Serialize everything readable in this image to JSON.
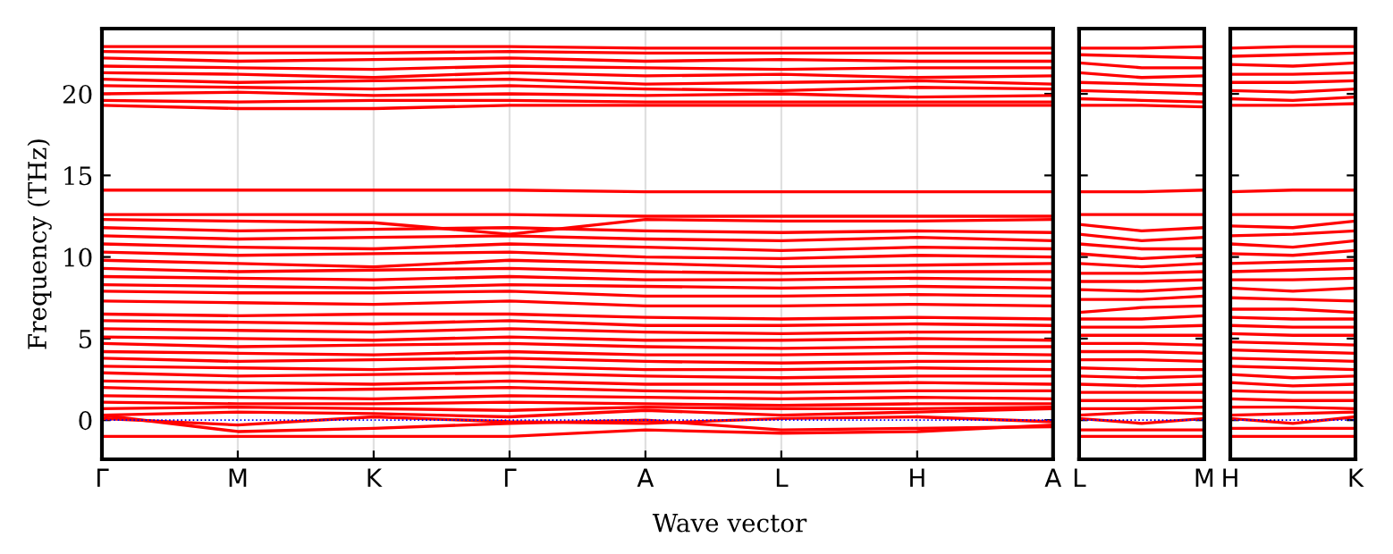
{
  "chart_data": [
    {
      "type": "line",
      "ylabel": "Frequency (THz)",
      "xlabel": "Wave vector",
      "color": "#ff0000",
      "line_style": "solid",
      "marker": "none",
      "grid": "x",
      "categories": [
        "Γ",
        "M",
        "K",
        "Γ",
        "A",
        "L",
        "H",
        "A"
      ],
      "ylim": [
        -2.4,
        24
      ],
      "yticks": [
        0,
        5,
        10,
        15,
        20
      ],
      "ref_lines": [
        {
          "axis": "y",
          "value": 0,
          "color": "#0000ff",
          "line_style": "dotted"
        }
      ],
      "series": [
        {
          "values": [
            22.9,
            22.9,
            22.9,
            22.9,
            22.8,
            22.8,
            22.8,
            22.8
          ]
        },
        {
          "values": [
            22.6,
            22.5,
            22.5,
            22.6,
            22.5,
            22.5,
            22.5,
            22.5
          ]
        },
        {
          "values": [
            22.2,
            22.0,
            22.1,
            22.2,
            22.0,
            22.1,
            22.0,
            22.0
          ]
        },
        {
          "values": [
            21.7,
            21.6,
            21.5,
            21.7,
            21.6,
            21.5,
            21.6,
            21.6
          ]
        },
        {
          "values": [
            21.3,
            21.2,
            21.0,
            21.3,
            21.1,
            21.2,
            21.0,
            21.1
          ]
        },
        {
          "values": [
            20.9,
            20.7,
            20.8,
            20.9,
            20.6,
            20.7,
            20.8,
            20.6
          ]
        },
        {
          "values": [
            20.5,
            20.4,
            20.3,
            20.5,
            20.3,
            20.2,
            20.4,
            20.3
          ]
        },
        {
          "values": [
            20.0,
            20.1,
            19.9,
            20.0,
            19.9,
            20.0,
            19.8,
            19.9
          ]
        },
        {
          "values": [
            19.6,
            19.5,
            19.6,
            19.6,
            19.5,
            19.5,
            19.5,
            19.5
          ]
        },
        {
          "values": [
            19.3,
            19.1,
            19.1,
            19.3,
            19.3,
            19.3,
            19.3,
            19.3
          ]
        },
        {
          "values": [
            14.1,
            14.1,
            14.1,
            14.1,
            14.0,
            14.0,
            14.0,
            14.0
          ]
        },
        {
          "values": [
            12.6,
            12.6,
            12.6,
            12.6,
            12.5,
            12.5,
            12.5,
            12.5
          ]
        },
        {
          "values": [
            12.3,
            12.2,
            12.1,
            11.4,
            12.3,
            12.2,
            12.2,
            12.3
          ]
        },
        {
          "values": [
            11.8,
            11.6,
            11.7,
            11.8,
            11.6,
            11.5,
            11.6,
            11.5
          ]
        },
        {
          "values": [
            11.3,
            11.1,
            11.2,
            11.3,
            11.1,
            11.0,
            11.2,
            11.0
          ]
        },
        {
          "values": [
            10.8,
            10.6,
            10.5,
            10.8,
            10.6,
            10.4,
            10.6,
            10.5
          ]
        },
        {
          "values": [
            10.3,
            10.1,
            10.2,
            10.3,
            10.0,
            9.9,
            10.1,
            10.0
          ]
        },
        {
          "values": [
            9.8,
            9.6,
            9.4,
            9.8,
            9.6,
            9.4,
            9.5,
            9.6
          ]
        },
        {
          "values": [
            9.3,
            9.1,
            9.2,
            9.3,
            9.1,
            9.0,
            9.1,
            9.1
          ]
        },
        {
          "values": [
            8.8,
            8.7,
            8.6,
            8.8,
            8.6,
            8.6,
            8.7,
            8.6
          ]
        },
        {
          "values": [
            8.3,
            8.2,
            8.1,
            8.3,
            8.2,
            8.1,
            8.2,
            8.1
          ]
        },
        {
          "values": [
            7.9,
            7.8,
            7.8,
            7.9,
            7.6,
            7.6,
            7.7,
            7.6
          ]
        },
        {
          "values": [
            7.3,
            7.2,
            7.1,
            7.3,
            7.0,
            7.0,
            7.1,
            7.0
          ]
        },
        {
          "values": [
            6.5,
            6.4,
            6.5,
            6.5,
            6.3,
            6.2,
            6.3,
            6.2
          ]
        },
        {
          "values": [
            6.1,
            6.0,
            5.9,
            6.1,
            5.8,
            5.8,
            5.9,
            5.8
          ]
        },
        {
          "values": [
            5.6,
            5.5,
            5.4,
            5.6,
            5.4,
            5.3,
            5.4,
            5.4
          ]
        },
        {
          "values": [
            5.1,
            5.0,
            4.9,
            5.1,
            4.9,
            4.9,
            5.0,
            4.9
          ]
        },
        {
          "values": [
            4.7,
            4.5,
            4.6,
            4.7,
            4.5,
            4.4,
            4.5,
            4.5
          ]
        },
        {
          "values": [
            4.2,
            4.1,
            4.0,
            4.2,
            4.0,
            4.0,
            4.1,
            4.0
          ]
        },
        {
          "values": [
            3.8,
            3.6,
            3.7,
            3.8,
            3.6,
            3.5,
            3.6,
            3.6
          ]
        },
        {
          "values": [
            3.3,
            3.2,
            3.1,
            3.3,
            3.1,
            3.1,
            3.2,
            3.1
          ]
        },
        {
          "values": [
            2.9,
            2.7,
            2.8,
            2.9,
            2.7,
            2.6,
            2.7,
            2.7
          ]
        },
        {
          "values": [
            2.4,
            2.3,
            2.2,
            2.4,
            2.2,
            2.2,
            2.3,
            2.2
          ]
        },
        {
          "values": [
            2.0,
            1.8,
            1.9,
            2.0,
            1.8,
            1.7,
            1.8,
            1.8
          ]
        },
        {
          "values": [
            1.5,
            1.4,
            1.3,
            1.5,
            1.4,
            1.3,
            1.4,
            1.3
          ]
        },
        {
          "values": [
            1.1,
            1.0,
            1.0,
            1.1,
            1.0,
            0.9,
            1.0,
            1.0
          ]
        },
        {
          "values": [
            0.7,
            0.8,
            0.7,
            0.6,
            0.8,
            0.7,
            0.7,
            0.8
          ]
        },
        {
          "values": [
            0.3,
            0.5,
            0.4,
            0.2,
            0.6,
            0.3,
            0.5,
            0.7
          ]
        },
        {
          "values": [
            0.1,
            -0.3,
            0.2,
            -0.1,
            -0.2,
            0.1,
            0.2,
            -0.1
          ]
        },
        {
          "values": [
            0.3,
            -0.7,
            -0.5,
            -0.2,
            0.0,
            -0.6,
            -0.5,
            -0.4
          ]
        },
        {
          "values": [
            -1.0,
            -1.0,
            -1.0,
            -1.0,
            -0.6,
            -0.8,
            -0.7,
            -0.3
          ]
        }
      ]
    },
    {
      "type": "line",
      "color": "#ff0000",
      "line_style": "solid",
      "marker": "none",
      "tick_labels": "x",
      "categories": [
        "L",
        null,
        "M"
      ],
      "ylim": [
        -2.4,
        24
      ],
      "yticks": [
        {
          "value": 0,
          "label": null
        },
        {
          "value": 5,
          "label": null
        },
        {
          "value": 10,
          "label": null
        },
        {
          "value": 15,
          "label": null
        },
        {
          "value": 20,
          "label": null
        }
      ],
      "ref_lines": [
        {
          "axis": "y",
          "value": 0,
          "color": "#0000ff",
          "line_style": "dotted"
        }
      ],
      "series": [
        {
          "values": [
            22.8,
            22.8,
            22.9
          ]
        },
        {
          "values": [
            22.4,
            22.3,
            22.2
          ]
        },
        {
          "values": [
            21.9,
            21.6,
            21.6
          ]
        },
        {
          "values": [
            21.3,
            21.0,
            21.1
          ]
        },
        {
          "values": [
            20.7,
            20.6,
            20.5
          ]
        },
        {
          "values": [
            20.2,
            20.1,
            20.0
          ]
        },
        {
          "values": [
            19.7,
            19.6,
            19.5
          ]
        },
        {
          "values": [
            19.3,
            19.3,
            19.2
          ]
        },
        {
          "values": [
            14.0,
            14.0,
            14.1
          ]
        },
        {
          "values": [
            12.6,
            12.6,
            12.6
          ]
        },
        {
          "values": [
            12.0,
            11.6,
            11.8
          ]
        },
        {
          "values": [
            11.4,
            11.0,
            11.2
          ]
        },
        {
          "values": [
            10.8,
            10.5,
            10.5
          ]
        },
        {
          "values": [
            10.2,
            9.9,
            10.1
          ]
        },
        {
          "values": [
            9.6,
            9.4,
            9.6
          ]
        },
        {
          "values": [
            9.0,
            9.0,
            9.1
          ]
        },
        {
          "values": [
            8.5,
            8.5,
            8.6
          ]
        },
        {
          "values": [
            8.0,
            7.9,
            8.1
          ]
        },
        {
          "values": [
            7.4,
            7.4,
            7.6
          ]
        },
        {
          "values": [
            6.6,
            6.9,
            7.0
          ]
        },
        {
          "values": [
            6.2,
            6.2,
            6.4
          ]
        },
        {
          "values": [
            5.7,
            5.7,
            5.8
          ]
        },
        {
          "values": [
            5.2,
            5.2,
            5.2
          ]
        },
        {
          "values": [
            4.7,
            4.7,
            4.6
          ]
        },
        {
          "values": [
            4.2,
            4.2,
            4.1
          ]
        },
        {
          "values": [
            3.7,
            3.7,
            3.6
          ]
        },
        {
          "values": [
            3.2,
            3.1,
            3.1
          ]
        },
        {
          "values": [
            2.7,
            2.6,
            2.7
          ]
        },
        {
          "values": [
            2.2,
            2.1,
            2.2
          ]
        },
        {
          "values": [
            1.7,
            1.7,
            1.7
          ]
        },
        {
          "values": [
            1.2,
            1.2,
            1.2
          ]
        },
        {
          "values": [
            0.7,
            0.7,
            0.8
          ]
        },
        {
          "values": [
            0.3,
            0.5,
            0.4
          ]
        },
        {
          "values": [
            0.1,
            -0.2,
            0.1
          ]
        },
        {
          "values": [
            -0.6,
            -0.6,
            -0.6
          ]
        },
        {
          "values": [
            -1.0,
            -1.0,
            -1.0
          ]
        }
      ]
    },
    {
      "type": "line",
      "color": "#ff0000",
      "line_style": "solid",
      "marker": "none",
      "tick_labels": "x",
      "categories": [
        "H",
        null,
        "K"
      ],
      "ylim": [
        -2.4,
        24
      ],
      "yticks": [
        {
          "value": 0,
          "label": null
        },
        {
          "value": 5,
          "label": null
        },
        {
          "value": 10,
          "label": null
        },
        {
          "value": 15,
          "label": null
        },
        {
          "value": 20,
          "label": null
        }
      ],
      "ref_lines": [
        {
          "axis": "y",
          "value": 0,
          "color": "#0000ff",
          "line_style": "dotted"
        }
      ],
      "series": [
        {
          "values": [
            22.8,
            22.9,
            22.9
          ]
        },
        {
          "values": [
            22.3,
            22.4,
            22.5
          ]
        },
        {
          "values": [
            21.8,
            21.7,
            21.9
          ]
        },
        {
          "values": [
            21.2,
            21.2,
            21.3
          ]
        },
        {
          "values": [
            20.7,
            20.7,
            20.8
          ]
        },
        {
          "values": [
            20.2,
            20.1,
            20.3
          ]
        },
        {
          "values": [
            19.7,
            19.6,
            19.8
          ]
        },
        {
          "values": [
            19.3,
            19.3,
            19.4
          ]
        },
        {
          "values": [
            14.0,
            14.1,
            14.1
          ]
        },
        {
          "values": [
            12.6,
            12.6,
            12.6
          ]
        },
        {
          "values": [
            11.9,
            11.8,
            12.2
          ]
        },
        {
          "values": [
            11.3,
            11.4,
            11.6
          ]
        },
        {
          "values": [
            10.8,
            10.6,
            11.0
          ]
        },
        {
          "values": [
            10.2,
            10.1,
            10.4
          ]
        },
        {
          "values": [
            9.6,
            9.7,
            9.8
          ]
        },
        {
          "values": [
            9.1,
            9.2,
            9.3
          ]
        },
        {
          "values": [
            8.6,
            8.6,
            8.7
          ]
        },
        {
          "values": [
            8.1,
            7.9,
            8.1
          ]
        },
        {
          "values": [
            7.5,
            7.4,
            7.3
          ]
        },
        {
          "values": [
            6.8,
            6.8,
            6.6
          ]
        },
        {
          "values": [
            6.3,
            6.2,
            6.2
          ]
        },
        {
          "values": [
            5.8,
            5.7,
            5.7
          ]
        },
        {
          "values": [
            5.3,
            5.2,
            5.2
          ]
        },
        {
          "values": [
            4.8,
            4.7,
            4.6
          ]
        },
        {
          "values": [
            4.3,
            4.2,
            4.1
          ]
        },
        {
          "values": [
            3.8,
            3.7,
            3.6
          ]
        },
        {
          "values": [
            3.3,
            3.2,
            3.1
          ]
        },
        {
          "values": [
            2.8,
            2.6,
            2.7
          ]
        },
        {
          "values": [
            2.3,
            2.1,
            2.2
          ]
        },
        {
          "values": [
            1.8,
            1.7,
            1.7
          ]
        },
        {
          "values": [
            1.3,
            1.2,
            1.2
          ]
        },
        {
          "values": [
            0.8,
            0.8,
            0.7
          ]
        },
        {
          "values": [
            0.3,
            0.4,
            0.5
          ]
        },
        {
          "values": [
            0.1,
            -0.2,
            0.2
          ]
        },
        {
          "values": [
            -0.5,
            -0.5,
            -0.5
          ]
        },
        {
          "values": [
            -1.0,
            -1.0,
            -1.0
          ]
        }
      ]
    }
  ]
}
